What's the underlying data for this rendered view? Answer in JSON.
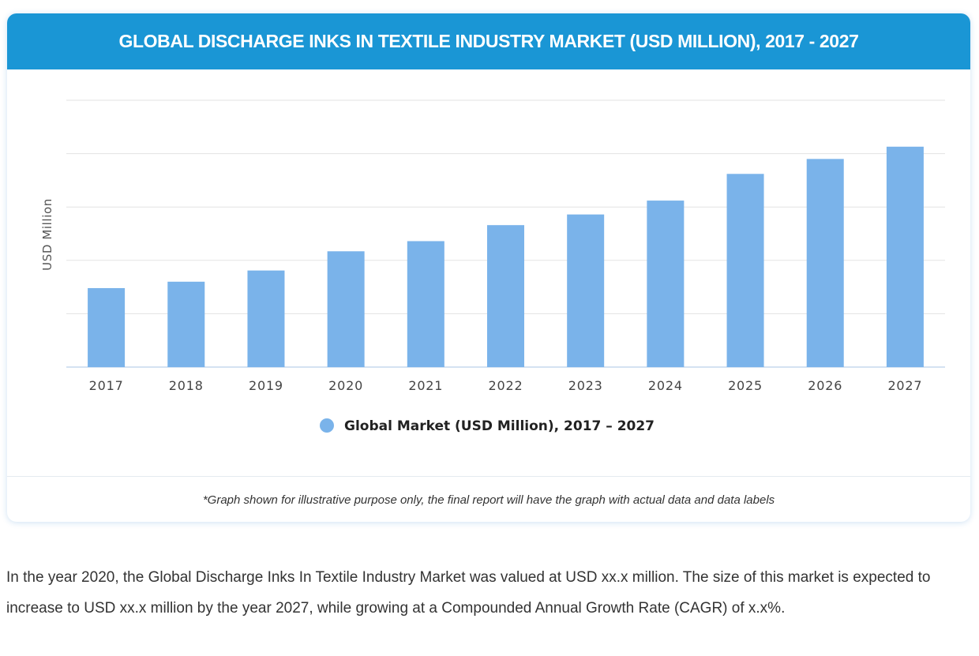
{
  "header": {
    "title": "GLOBAL DISCHARGE INKS IN TEXTILE INDUSTRY MARKET (USD MILLION), 2017 - 2027"
  },
  "chart_data": {
    "type": "bar",
    "title": "GLOBAL DISCHARGE INKS IN TEXTILE INDUSTRY MARKET (USD MILLION), 2017 - 2027",
    "xlabel": "",
    "ylabel": "USD Million",
    "categories": [
      "2017",
      "2018",
      "2019",
      "2020",
      "2021",
      "2022",
      "2023",
      "2024",
      "2025",
      "2026",
      "2027"
    ],
    "series": [
      {
        "name": "Global Market (USD Million), 2017 – 2027",
        "values": [
          1.48,
          1.6,
          1.81,
          2.17,
          2.36,
          2.66,
          2.86,
          3.12,
          3.62,
          3.9,
          4.13
        ]
      }
    ],
    "ylim": [
      0,
      5
    ],
    "yticks": [
      0,
      1,
      2,
      3,
      4,
      5
    ],
    "ytick_labels_shown": false,
    "grid": true,
    "legend": "bottom-center",
    "color": "#7ab3ea",
    "note": "values illustrative; y-axis has no numeric labels"
  },
  "footnote": "*Graph shown for illustrative purpose only, the final report will have the graph with actual data and data labels",
  "description": "In the year 2020, the Global Discharge Inks In Textile Industry Market was valued at USD xx.x million. The size of this market is expected to increase to USD xx.x million by the year 2027, while growing at a Compounded Annual Growth Rate (CAGR) of x.x%."
}
